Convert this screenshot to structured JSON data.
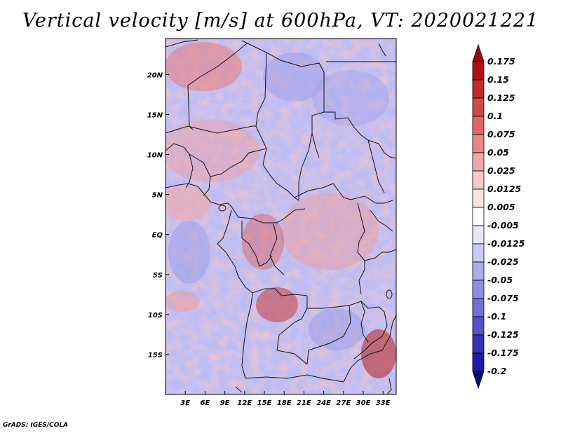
{
  "title": "Vertical velocity [m/s] at 600hPa, VT: 2020021221",
  "credit": "GrADS: IGES/COLA",
  "map": {
    "lat_labels": [
      "20N",
      "15N",
      "10N",
      "5N",
      "EQ",
      "5S",
      "10S",
      "15S"
    ],
    "lat_values": [
      20,
      15,
      10,
      5,
      0,
      -5,
      -10,
      -15
    ],
    "lon_labels": [
      "3E",
      "6E",
      "9E",
      "12E",
      "15E",
      "18E",
      "21E",
      "24E",
      "27E",
      "30E",
      "33E"
    ],
    "lon_values": [
      3,
      6,
      9,
      12,
      15,
      18,
      21,
      24,
      27,
      30,
      33
    ],
    "lat_range": [
      -20,
      24.5
    ],
    "lon_range": [
      0,
      35
    ]
  },
  "colorbar": {
    "labels": [
      "0.175",
      "0.15",
      "0.125",
      "0.1",
      "0.075",
      "0.05",
      "0.025",
      "0.0125",
      "0.005",
      "-0.005",
      "-0.0125",
      "-0.025",
      "-0.05",
      "-0.075",
      "-0.1",
      "-0.125",
      "-0.175",
      "-0.2"
    ],
    "colors": [
      "#b01018",
      "#c22a2a",
      "#d44848",
      "#e26666",
      "#eb8686",
      "#f2a6a6",
      "#f8c8c8",
      "#fce2e2",
      "#ffffff",
      "#e6e6fb",
      "#cacaf6",
      "#acacee",
      "#8e8ee4",
      "#7070d8",
      "#5252c9",
      "#3434b9",
      "#1c1ca8",
      "#0c0c92"
    ],
    "top_color": "#9a0a12",
    "bottom_color": "#0a0a80"
  }
}
